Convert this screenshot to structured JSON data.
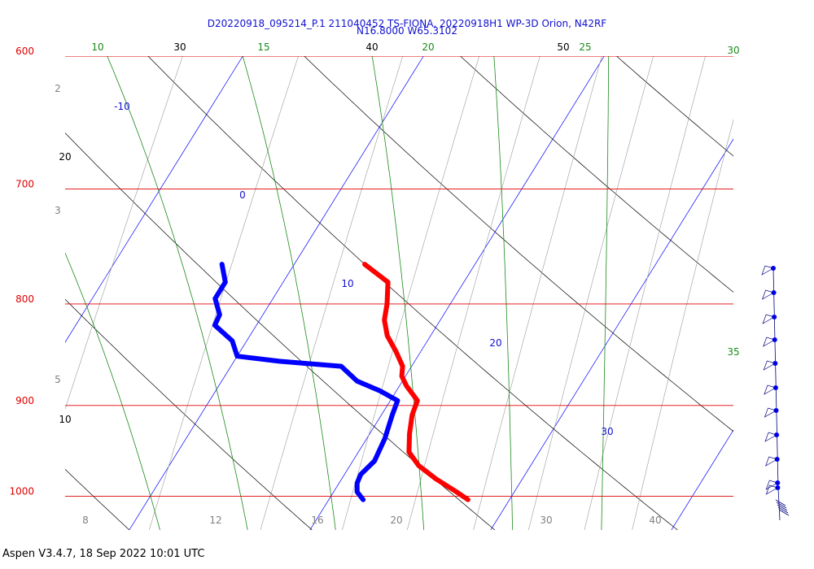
{
  "chart_data": {
    "type": "line",
    "title": "D20220918_095214_P.1 211040452 TS-FIONA, 20220918H1 WP-3D Orion, N42RF",
    "subtitle": "N16.8000 W65.3102",
    "footer": "Aspen V3.4.7, 18 Sep 2022  10:01 UTC",
    "xlabel": "",
    "ylabel": "",
    "pressure_range": [
      1040,
      600
    ],
    "temperature_range_at_bottom": [
      6,
      43
    ],
    "isobars": [
      {
        "p": 600,
        "label": "600"
      },
      {
        "p": 700,
        "label": "700"
      },
      {
        "p": 800,
        "label": "800"
      },
      {
        "p": 900,
        "label": "900"
      },
      {
        "p": 1000,
        "label": "1000"
      }
    ],
    "bottom_temperature_labels": [
      "8",
      "12",
      "16",
      "20",
      "30",
      "40"
    ],
    "isotherm_labels": [
      "-10",
      "0",
      "10",
      "20",
      "30"
    ],
    "dry_adiabat_labels": [
      "10",
      "20",
      "30",
      "40",
      "50"
    ],
    "moist_adiabat_labels": [
      "10",
      "15",
      "20",
      "25",
      "30",
      "35"
    ],
    "mixing_ratio_labels": [
      "2",
      "3",
      "5"
    ],
    "series": [
      {
        "name": "",
        "color": "#ff0000",
        "points": [
          [
            764,
            13.9
          ],
          [
            780,
            15.8
          ],
          [
            800,
            16.5
          ],
          [
            815,
            16.9
          ],
          [
            830,
            17.6
          ],
          [
            845,
            18.6
          ],
          [
            860,
            19.5
          ],
          [
            870,
            19.8
          ],
          [
            880,
            20.4
          ],
          [
            895,
            21.5
          ],
          [
            910,
            21.7
          ],
          [
            930,
            22.2
          ],
          [
            950,
            22.8
          ],
          [
            965,
            23.8
          ],
          [
            980,
            25.2
          ],
          [
            995,
            26.8
          ],
          [
            1004,
            27.7
          ]
        ]
      },
      {
        "name": "",
        "color": "#0000ff",
        "points": [
          [
            764,
            6.0
          ],
          [
            780,
            6.8
          ],
          [
            795,
            6.8
          ],
          [
            810,
            7.6
          ],
          [
            820,
            7.7
          ],
          [
            835,
            9.2
          ],
          [
            850,
            10.0
          ],
          [
            855,
            12.5
          ],
          [
            860,
            16.1
          ],
          [
            875,
            17.5
          ],
          [
            885,
            19.1
          ],
          [
            895,
            20.4
          ],
          [
            910,
            20.6
          ],
          [
            935,
            21.0
          ],
          [
            960,
            21.2
          ],
          [
            975,
            20.9
          ],
          [
            985,
            21.0
          ],
          [
            995,
            21.3
          ],
          [
            1004,
            21.9
          ]
        ]
      }
    ],
    "wind_barb_count": 12
  }
}
